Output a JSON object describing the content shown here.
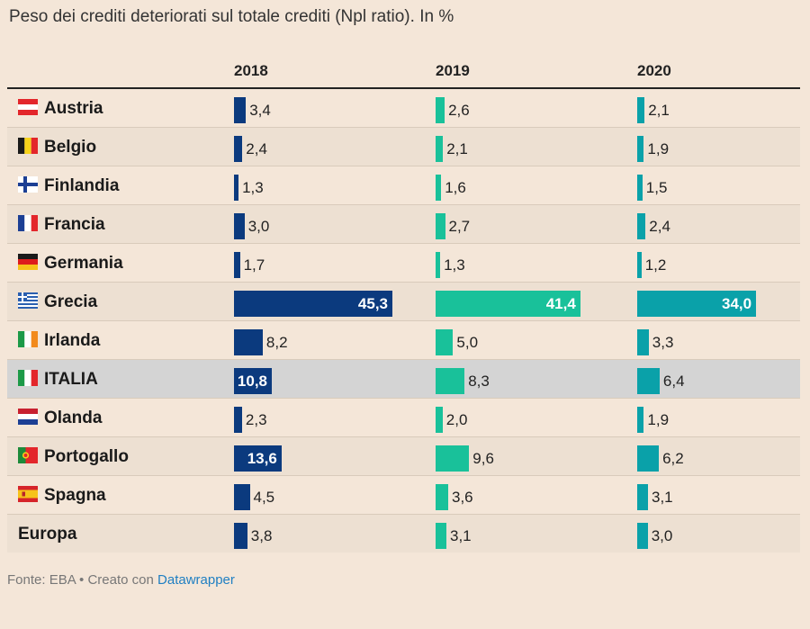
{
  "title": "Peso dei crediti deteriorati sul totale crediti (Npl ratio). In %",
  "columns": [
    "2018",
    "2019",
    "2020"
  ],
  "source_prefix": "Fonte: EBA • Creato con ",
  "source_link": "Datawrapper",
  "colors": {
    "2018": "#0b3a7e",
    "2019": "#19c19a",
    "2020": "#0aa1a9",
    "bar_2019_alt": "#14b08b"
  },
  "chart_data": {
    "type": "table",
    "title": "Peso dei crediti deteriorati sul totale crediti (Npl ratio). In %",
    "series_names": [
      "2018",
      "2019",
      "2020"
    ],
    "max_value": 45.3,
    "rows": [
      {
        "country": "Austria",
        "flag": "austria-flag",
        "values": [
          3.4,
          2.6,
          2.1
        ],
        "labels": [
          "3,4",
          "2,6",
          "2,1"
        ]
      },
      {
        "country": "Belgio",
        "flag": "belgium-flag",
        "values": [
          2.4,
          2.1,
          1.9
        ],
        "labels": [
          "2,4",
          "2,1",
          "1,9"
        ]
      },
      {
        "country": "Finlandia",
        "flag": "finland-flag",
        "values": [
          1.3,
          1.6,
          1.5
        ],
        "labels": [
          "1,3",
          "1,6",
          "1,5"
        ]
      },
      {
        "country": "Francia",
        "flag": "france-flag",
        "values": [
          3.0,
          2.7,
          2.4
        ],
        "labels": [
          "3,0",
          "2,7",
          "2,4"
        ]
      },
      {
        "country": "Germania",
        "flag": "germany-flag",
        "values": [
          1.7,
          1.3,
          1.2
        ],
        "labels": [
          "1,7",
          "1,3",
          "1,2"
        ]
      },
      {
        "country": "Grecia",
        "flag": "greece-flag",
        "values": [
          45.3,
          41.4,
          34.0
        ],
        "labels": [
          "45,3",
          "41,4",
          "34,0"
        ]
      },
      {
        "country": "Irlanda",
        "flag": "ireland-flag",
        "values": [
          8.2,
          5.0,
          3.3
        ],
        "labels": [
          "8,2",
          "5,0",
          "3,3"
        ]
      },
      {
        "country": "ITALIA",
        "flag": "italy-flag",
        "values": [
          10.8,
          8.3,
          6.4
        ],
        "labels": [
          "10,8",
          "8,3",
          "6,4"
        ],
        "highlight": true
      },
      {
        "country": "Olanda",
        "flag": "netherlands-flag",
        "values": [
          2.3,
          2.0,
          1.9
        ],
        "labels": [
          "2,3",
          "2,0",
          "1,9"
        ]
      },
      {
        "country": "Portogallo",
        "flag": "portugal-flag",
        "values": [
          13.6,
          9.6,
          6.2
        ],
        "labels": [
          "13,6",
          "9,6",
          "6,2"
        ]
      },
      {
        "country": "Spagna",
        "flag": "spain-flag",
        "values": [
          4.5,
          3.6,
          3.1
        ],
        "labels": [
          "4,5",
          "3,6",
          "3,1"
        ]
      },
      {
        "country": "Europa",
        "flag": "",
        "values": [
          3.8,
          3.1,
          3.0
        ],
        "labels": [
          "3,8",
          "3,1",
          "3,0"
        ]
      }
    ]
  }
}
